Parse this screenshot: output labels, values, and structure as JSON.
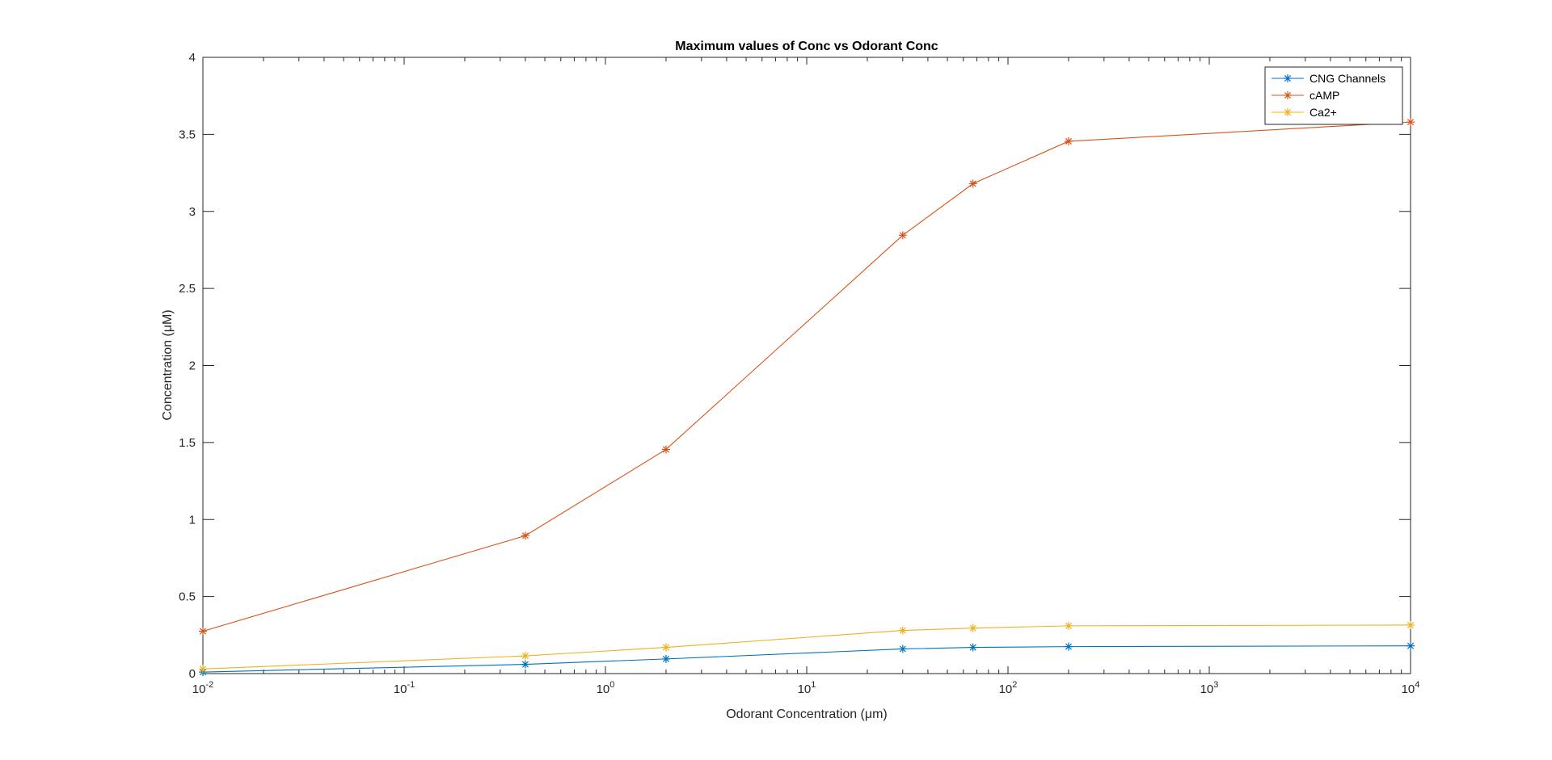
{
  "chart_data": {
    "type": "line",
    "title": "Maximum values of Conc vs Odorant Conc",
    "xlabel": "Odorant Concentration (μm)",
    "ylabel": "Concentration (μM)",
    "xscale": "log",
    "xlim": [
      0.01,
      10000
    ],
    "ylim": [
      0,
      4
    ],
    "x_ticks": [
      {
        "base": "10",
        "exp": "-2",
        "value": 0.01
      },
      {
        "base": "10",
        "exp": "-1",
        "value": 0.1
      },
      {
        "base": "10",
        "exp": "0",
        "value": 1
      },
      {
        "base": "10",
        "exp": "1",
        "value": 10
      },
      {
        "base": "10",
        "exp": "2",
        "value": 100
      },
      {
        "base": "10",
        "exp": "3",
        "value": 1000
      },
      {
        "base": "10",
        "exp": "4",
        "value": 10000
      }
    ],
    "y_ticks": [
      "0",
      "0.5",
      "1",
      "1.5",
      "2",
      "2.5",
      "3",
      "3.5",
      "4"
    ],
    "grid": false,
    "legend_position": "top-right",
    "marker": "asterisk",
    "x": [
      0.01,
      0.4,
      2,
      30,
      67,
      200,
      10000
    ],
    "series": [
      {
        "name": "CNG Channels",
        "color": "#0072BD",
        "values": [
          0.01,
          0.06,
          0.095,
          0.16,
          0.17,
          0.175,
          0.18
        ]
      },
      {
        "name": "cAMP",
        "color": "#D95319",
        "values": [
          0.275,
          0.895,
          1.455,
          2.845,
          3.18,
          3.455,
          3.58
        ]
      },
      {
        "name": "Ca2+",
        "color": "#EDB120",
        "values": [
          0.03,
          0.115,
          0.17,
          0.28,
          0.295,
          0.31,
          0.315
        ]
      }
    ]
  }
}
